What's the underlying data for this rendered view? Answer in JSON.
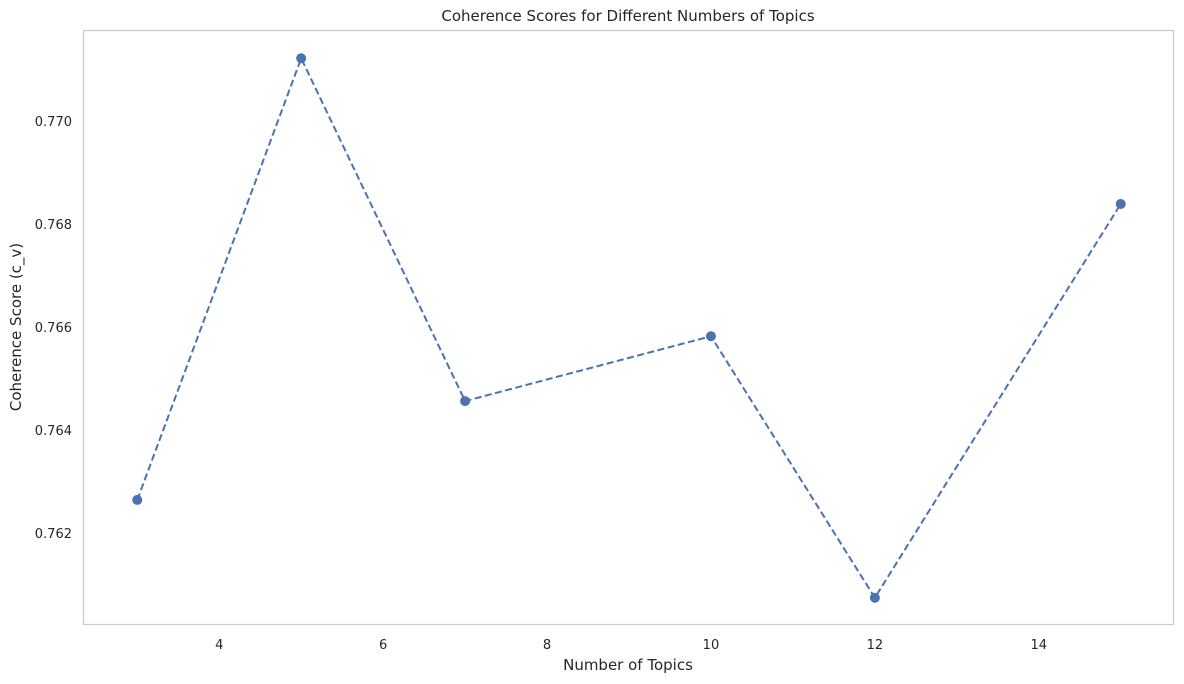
{
  "chart_data": {
    "type": "line",
    "title": "Coherence Scores for Different Numbers of Topics",
    "xlabel": "Number of Topics",
    "ylabel": "Coherence Score (c_v)",
    "x": [
      3,
      5,
      7,
      10,
      12,
      15
    ],
    "series": [
      {
        "values": [
          0.76264,
          0.77122,
          0.76456,
          0.76582,
          0.76074,
          0.76839
        ],
        "color": "#4c72b0",
        "line_style": "dashed",
        "marker": "circle"
      }
    ],
    "xlim": [
      2.35,
      15.65
    ],
    "ylim": [
      0.76021,
      0.77175
    ],
    "xticks": [
      4,
      6,
      8,
      10,
      12,
      14
    ],
    "xtick_labels": [
      "4",
      "6",
      "8",
      "10",
      "12",
      "14"
    ],
    "yticks": [
      0.762,
      0.764,
      0.766,
      0.768,
      0.77
    ],
    "ytick_labels": [
      "0.762",
      "0.764",
      "0.766",
      "0.768",
      "0.770"
    ],
    "grid": false,
    "legend": false
  }
}
